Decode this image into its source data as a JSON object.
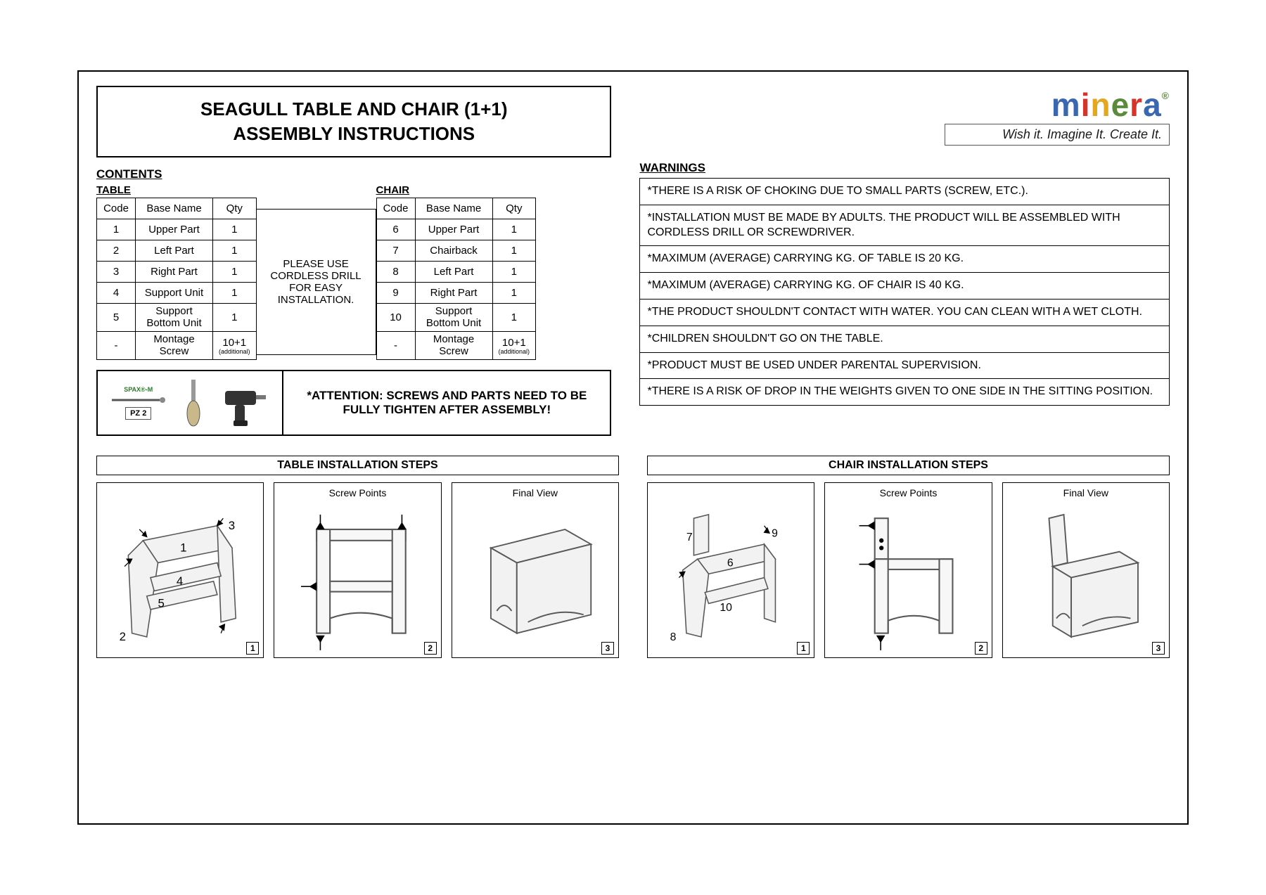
{
  "title": {
    "line1": "SEAGULL TABLE AND CHAIR (1+1)",
    "line2": "ASSEMBLY INSTRUCTIONS"
  },
  "brand": {
    "letters": [
      {
        "char": "m",
        "color": "#3a67b1"
      },
      {
        "char": "i",
        "color": "#d6342a"
      },
      {
        "char": "n",
        "color": "#e5a720"
      },
      {
        "char": "e",
        "color": "#5b8a3a"
      },
      {
        "char": "r",
        "color": "#d6342a"
      },
      {
        "char": "a",
        "color": "#3a67b1"
      }
    ],
    "reg": "®",
    "tagline": "Wish it. Imagine It. Create It."
  },
  "sections": {
    "contents": "CONTENTS",
    "table": "TABLE",
    "chair": "CHAIR",
    "warnings": "WARNINGS"
  },
  "parts_headers": {
    "code": "Code",
    "name": "Base Name",
    "qty": "Qty"
  },
  "table_parts": [
    {
      "code": "1",
      "name": "Upper Part",
      "qty": "1"
    },
    {
      "code": "2",
      "name": "Left Part",
      "qty": "1"
    },
    {
      "code": "3",
      "name": "Right Part",
      "qty": "1"
    },
    {
      "code": "4",
      "name": "Support Unit",
      "qty": "1"
    },
    {
      "code": "5",
      "name": "Support Bottom Unit",
      "qty": "1"
    },
    {
      "code": "-",
      "name": "Montage Screw",
      "qty": "10+1",
      "qty_sub": "(additional)"
    }
  ],
  "chair_parts": [
    {
      "code": "6",
      "name": "Upper Part",
      "qty": "1"
    },
    {
      "code": "7",
      "name": "Chairback",
      "qty": "1"
    },
    {
      "code": "8",
      "name": "Left Part",
      "qty": "1"
    },
    {
      "code": "9",
      "name": "Right Part",
      "qty": "1"
    },
    {
      "code": "10",
      "name": "Support Bottom Unit",
      "qty": "1"
    },
    {
      "code": "-",
      "name": "Montage Screw",
      "qty": "10+1",
      "qty_sub": "(additional)"
    }
  ],
  "drill_note": "PLEASE USE CORDLESS DRILL FOR EASY INSTALLATION.",
  "tools": {
    "spax": "SPAX®-M",
    "pz2": "PZ 2",
    "attention": "*ATTENTION: SCREWS AND PARTS NEED TO BE FULLY TIGHTEN AFTER ASSEMBLY!"
  },
  "warnings": [
    "*THERE IS A RISK OF CHOKING DUE TO SMALL PARTS (SCREW, ETC.).",
    "*INSTALLATION MUST BE MADE BY ADULTS. THE PRODUCT WILL BE ASSEMBLED WITH CORDLESS DRILL OR SCREWDRIVER.",
    "*MAXIMUM (AVERAGE) CARRYING KG. OF TABLE IS 20 KG.",
    "*MAXIMUM (AVERAGE) CARRYING KG. OF CHAIR IS 40 KG.",
    "*THE PRODUCT SHOULDN'T CONTACT WITH WATER. YOU CAN CLEAN WITH A WET CLOTH.",
    "*CHILDREN SHOULDN'T GO ON THE TABLE.",
    "*PRODUCT MUST BE USED UNDER PARENTAL SUPERVISION.",
    "*THERE IS A RISK OF DROP IN THE WEIGHTS GIVEN TO ONE SIDE IN THE SITTING POSITION."
  ],
  "install": {
    "table_header": "TABLE INSTALLATION STEPS",
    "chair_header": "CHAIR INSTALLATION STEPS",
    "screw_points": "Screw Points",
    "final_view": "Final View",
    "table_labels": [
      "1",
      "2",
      "3",
      "4",
      "5"
    ],
    "chair_labels": [
      "6",
      "7",
      "8",
      "9",
      "10"
    ],
    "step_nums": [
      "1",
      "2",
      "3"
    ]
  },
  "colors": {
    "border": "#000000",
    "bg": "#ffffff",
    "diagram_fill": "#f2f2f2",
    "diagram_stroke": "#595959"
  }
}
